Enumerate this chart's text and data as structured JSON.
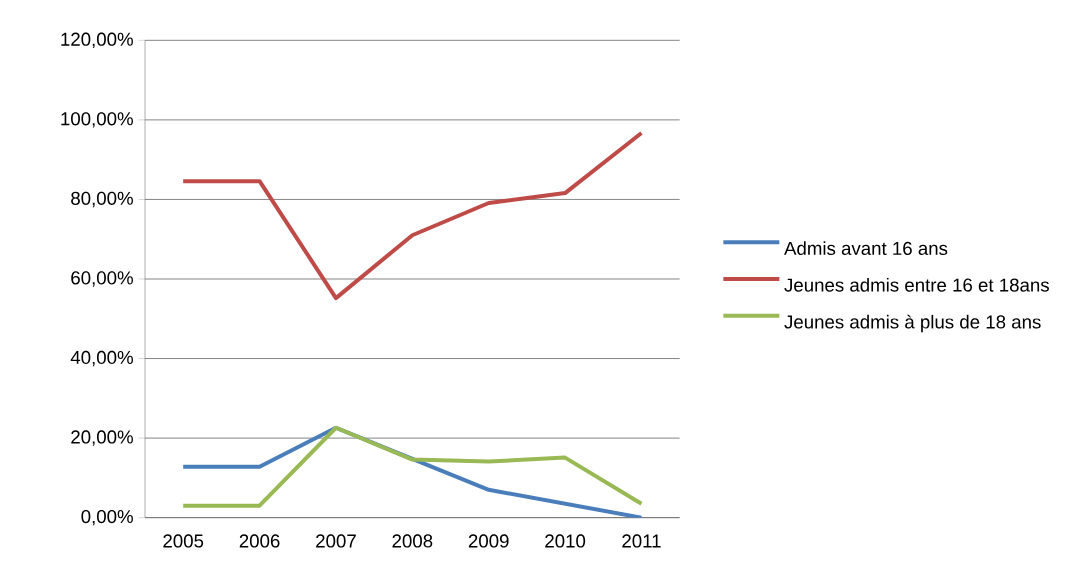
{
  "chart_data": {
    "type": "line",
    "categories": [
      "2005",
      "2006",
      "2007",
      "2008",
      "2009",
      "2010",
      "2011"
    ],
    "series": [
      {
        "name": "Admis avant 16 ans",
        "color": "#4a7ebb",
        "values": [
          12.8,
          12.8,
          22.6,
          14.8,
          7.0,
          3.5,
          0.0
        ]
      },
      {
        "name": "Jeunes admis entre 16 et 18ans",
        "color": "#be4b48",
        "values": [
          84.6,
          84.6,
          55.2,
          71.0,
          79.1,
          81.6,
          96.7
        ]
      },
      {
        "name": "Jeunes admis à plus de 18 ans",
        "color": "#98b954",
        "values": [
          3.0,
          3.0,
          22.6,
          14.6,
          14.1,
          15.1,
          3.5
        ]
      }
    ],
    "ylim": [
      0,
      120
    ],
    "yticks": [
      {
        "value": 0,
        "label": "0,00%"
      },
      {
        "value": 20,
        "label": "20,00%"
      },
      {
        "value": 40,
        "label": "40,00%"
      },
      {
        "value": 60,
        "label": "60,00%"
      },
      {
        "value": 80,
        "label": "80,00%"
      },
      {
        "value": 100,
        "label": "100,00%"
      },
      {
        "value": 120,
        "label": "120,00%"
      }
    ],
    "grid": "y",
    "legend": "right",
    "marker": "none",
    "line_style": "solid"
  }
}
